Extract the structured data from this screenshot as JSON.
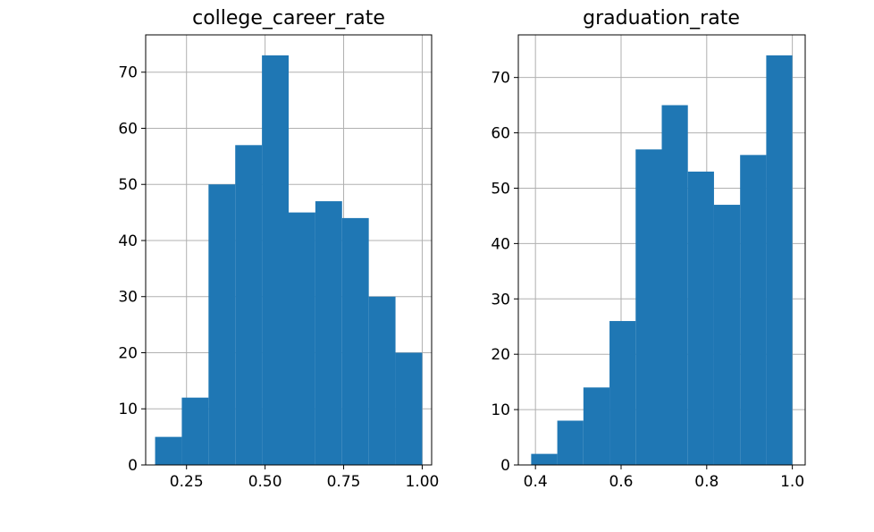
{
  "chart_data": [
    {
      "type": "bar",
      "title": "college_career_rate",
      "xlabel": "",
      "ylabel": "",
      "bin_edges": [
        0.15,
        0.235,
        0.32,
        0.405,
        0.49,
        0.575,
        0.66,
        0.745,
        0.83,
        0.915,
        1.0
      ],
      "values": [
        5,
        12,
        50,
        57,
        73,
        45,
        47,
        44,
        30,
        20
      ],
      "xlim": [
        0.12,
        1.03
      ],
      "ylim": [
        0,
        76.65
      ],
      "xticks": [
        0.25,
        0.5,
        0.75,
        1.0
      ],
      "xtick_labels": [
        "0.25",
        "0.50",
        "0.75",
        "1.00"
      ],
      "yticks": [
        0,
        10,
        20,
        30,
        40,
        50,
        60,
        70
      ],
      "ytick_labels": [
        "0",
        "10",
        "20",
        "30",
        "40",
        "50",
        "60",
        "70"
      ],
      "grid": true,
      "color": "#1f77b4"
    },
    {
      "type": "bar",
      "title": "graduation_rate",
      "xlabel": "",
      "ylabel": "",
      "bin_edges": [
        0.39,
        0.451,
        0.512,
        0.573,
        0.634,
        0.695,
        0.756,
        0.817,
        0.878,
        0.939,
        1.0
      ],
      "values": [
        2,
        8,
        14,
        26,
        57,
        65,
        53,
        47,
        56,
        74
      ],
      "xlim": [
        0.36,
        1.03
      ],
      "ylim": [
        0,
        77.7
      ],
      "xticks": [
        0.4,
        0.6,
        0.8,
        1.0
      ],
      "xtick_labels": [
        "0.4",
        "0.6",
        "0.8",
        "1.0"
      ],
      "yticks": [
        0,
        10,
        20,
        30,
        40,
        50,
        60,
        70
      ],
      "ytick_labels": [
        "0",
        "10",
        "20",
        "30",
        "40",
        "50",
        "60",
        "70"
      ],
      "grid": true,
      "color": "#1f77b4"
    }
  ]
}
